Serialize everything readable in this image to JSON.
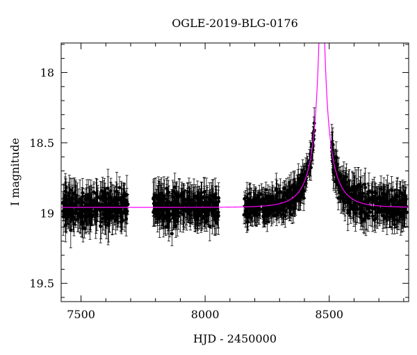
{
  "chart_data": {
    "type": "scatter",
    "title": "OGLE-2019-BLG-0176",
    "xlabel": "HJD - 2450000",
    "ylabel": "I magnitude",
    "xlim": [
      7420,
      8820
    ],
    "ylim": [
      19.63,
      17.79
    ],
    "y_inverted": true,
    "x_ticks": [
      7500,
      8000,
      8500
    ],
    "y_ticks": [
      18,
      18.5,
      19,
      19.5
    ],
    "grid": false,
    "series": [
      {
        "kind": "points_with_errorbars",
        "color": "#000000",
        "segments": [
          {
            "x_range": [
              7425,
              7690
            ],
            "base_mag": 18.96,
            "scatter": 0.22,
            "errbar": 0.1
          },
          {
            "x_range": [
              7790,
              8055
            ],
            "base_mag": 18.96,
            "scatter": 0.2,
            "errbar": 0.1
          },
          {
            "x_range": [
              8155,
              8440
            ],
            "model": true,
            "scatter": 0.16,
            "errbar": 0.08
          },
          {
            "x_range": [
              8510,
              8815
            ],
            "model": true,
            "scatter": 0.2,
            "errbar": 0.1
          }
        ]
      },
      {
        "kind": "model_curve",
        "color": "#ff00ff",
        "baseline_mag": 18.96,
        "t0": 8470,
        "tE": 95,
        "u0": 0.055,
        "fs": 0.3
      }
    ]
  }
}
